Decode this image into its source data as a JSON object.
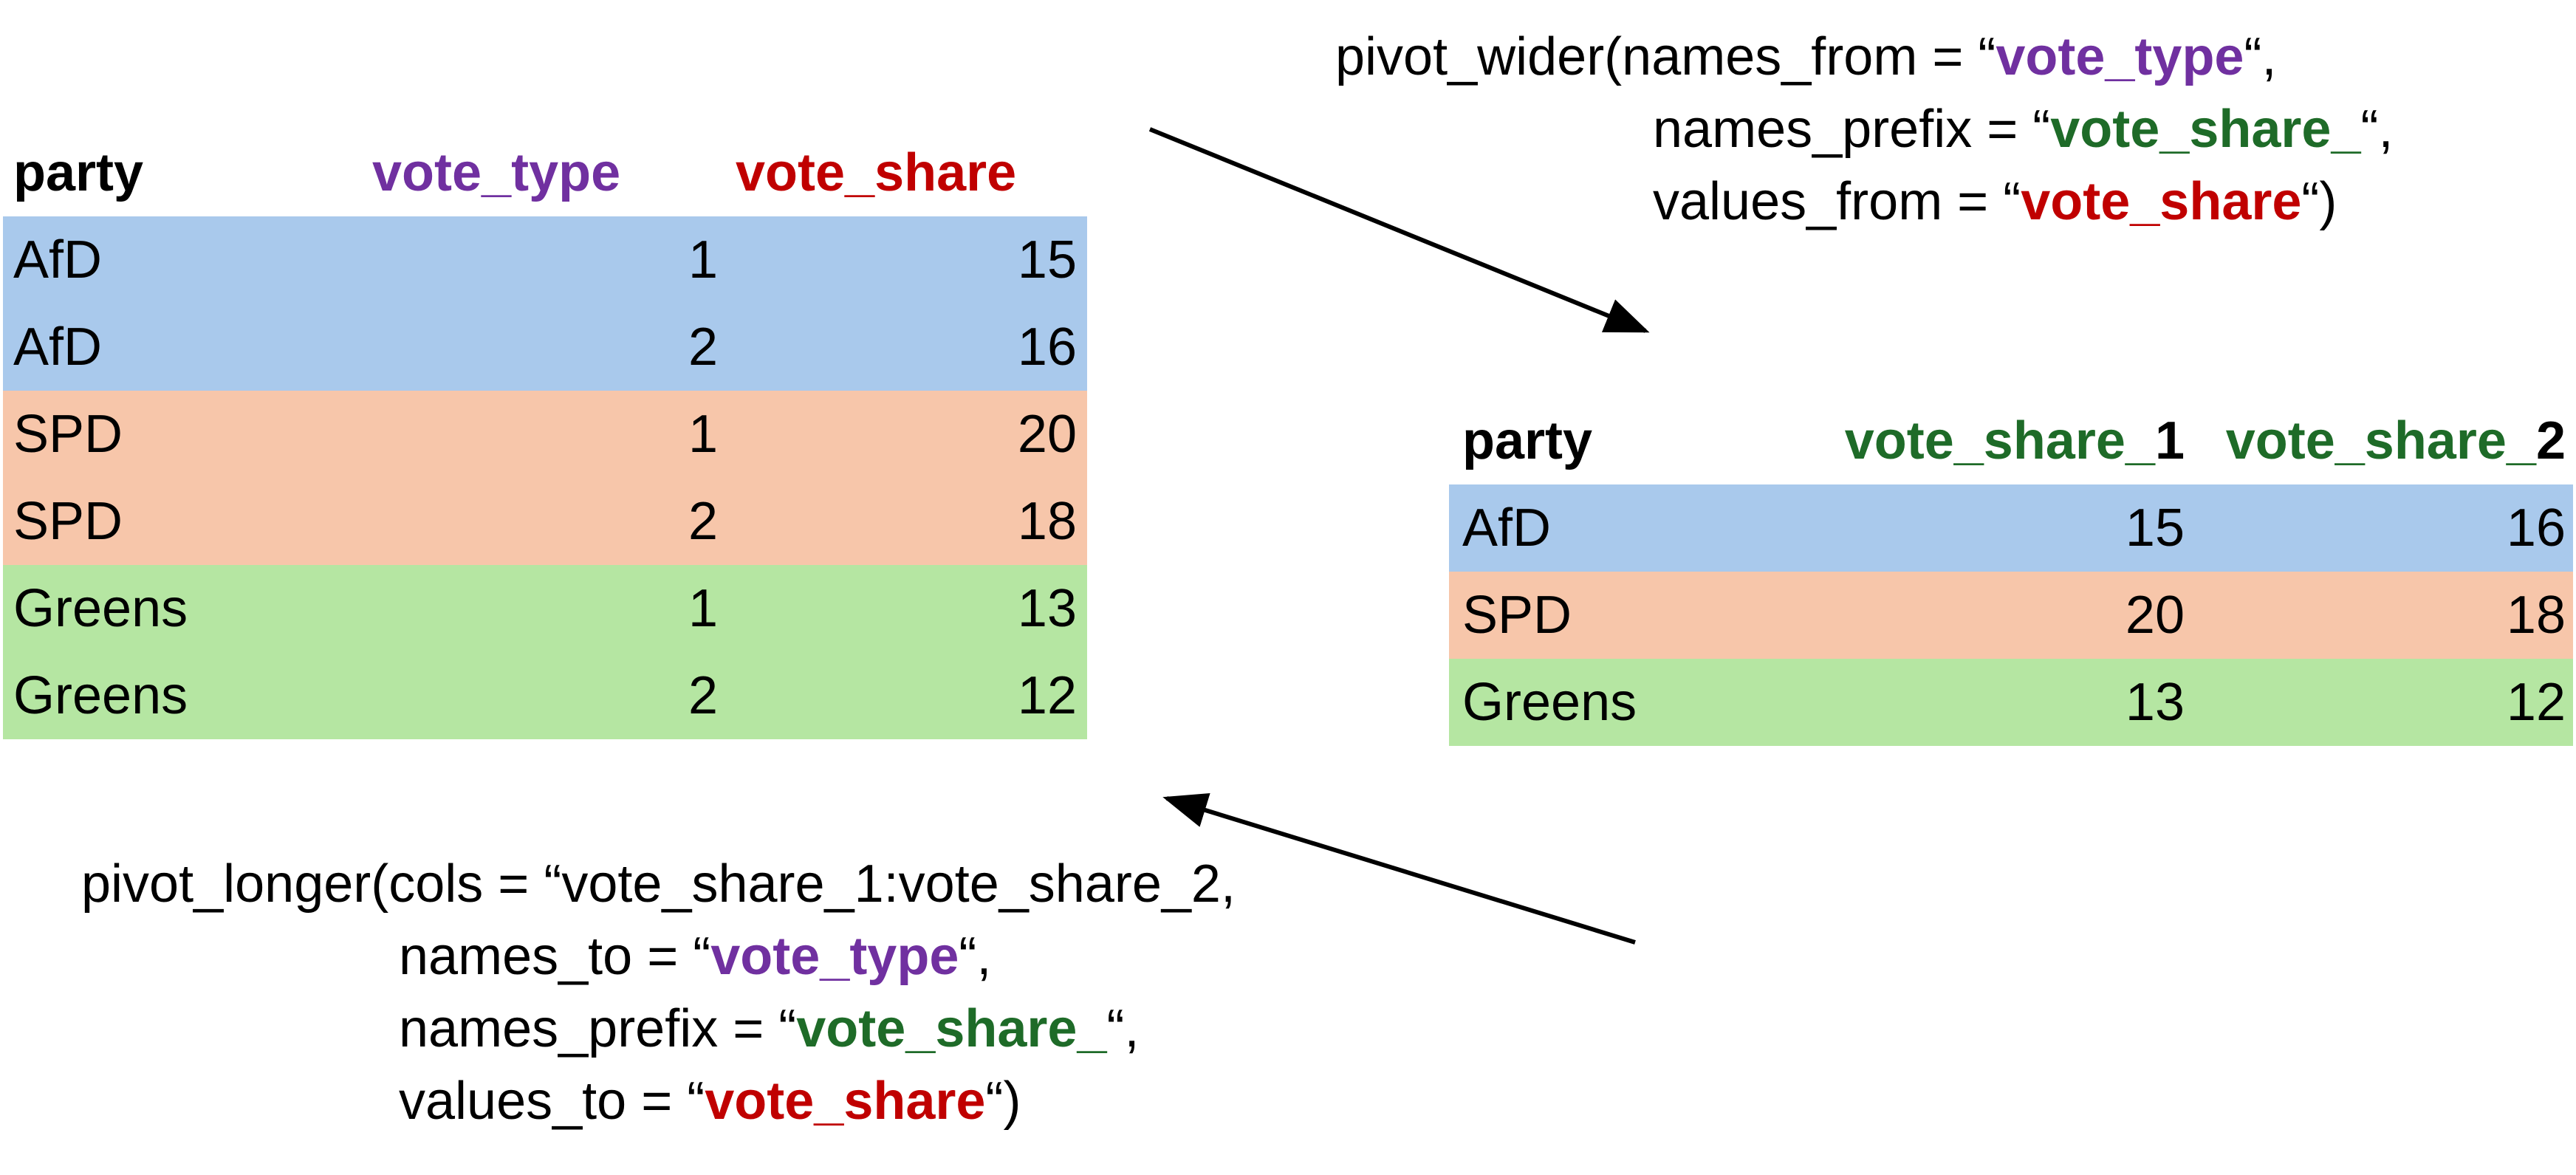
{
  "colors": {
    "type": "#7030A0",
    "prefix": "#1E6B28",
    "value": "#C00000",
    "afd": "#A9C9EC",
    "spd": "#F7C6AA",
    "greens": "#B5E6A2"
  },
  "long_table": {
    "headers": [
      "party",
      "vote_type",
      "vote_share"
    ],
    "rows": [
      {
        "party": "AfD",
        "vote_type": "1",
        "vote_share": "15"
      },
      {
        "party": "AfD",
        "vote_type": "2",
        "vote_share": "16"
      },
      {
        "party": "SPD",
        "vote_type": "1",
        "vote_share": "20"
      },
      {
        "party": "SPD",
        "vote_type": "2",
        "vote_share": "18"
      },
      {
        "party": "Greens",
        "vote_type": "1",
        "vote_share": "13"
      },
      {
        "party": "Greens",
        "vote_type": "2",
        "vote_share": "12"
      }
    ]
  },
  "wide_table": {
    "header_party": "party",
    "header_col1_prefix": "vote_share_",
    "header_col1_suffix": "1",
    "header_col2_prefix": "vote_share_",
    "header_col2_suffix": "2",
    "rows": [
      {
        "party": "AfD",
        "vote_share_1": "15",
        "vote_share_2": "16"
      },
      {
        "party": "SPD",
        "vote_share_1": "20",
        "vote_share_2": "18"
      },
      {
        "party": "Greens",
        "vote_share_1": "13",
        "vote_share_2": "12"
      }
    ]
  },
  "pivot_wider": {
    "l1_pre": "pivot_wider(names_from = “",
    "l1_kw": "vote_type",
    "l1_post": "“,",
    "l2_pre": "names_prefix = “",
    "l2_kw": "vote_share_",
    "l2_post": "“,",
    "l3_pre": "values_from = “",
    "l3_kw": "vote_share",
    "l3_post": "“)"
  },
  "pivot_longer": {
    "l1": "pivot_longer(cols = “vote_share_1:vote_share_2,",
    "l2_pre": "names_to = “",
    "l2_kw": "vote_type",
    "l2_post": "“,",
    "l3_pre": "names_prefix = “",
    "l3_kw": "vote_share_",
    "l3_post": "“,",
    "l4_pre": "values_to = “",
    "l4_kw": "vote_share",
    "l4_post": "“)"
  }
}
